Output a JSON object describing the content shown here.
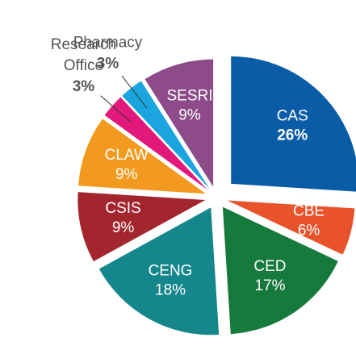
{
  "chart_data": {
    "type": "pie",
    "categories": [
      "CAS",
      "CBE",
      "CED",
      "CENG",
      "CSIS",
      "CLAW",
      "Research Office",
      "Pharmacy",
      "SESRI"
    ],
    "values": [
      26,
      6,
      17,
      18,
      9,
      9,
      3,
      3,
      9
    ],
    "value_labels": [
      "26%",
      "6%",
      "17%",
      "18%",
      "9%",
      "9%",
      "3%",
      "3%",
      "9%"
    ],
    "colors": [
      "#0b5ca6",
      "#e8532b",
      "#167a3d",
      "#15868b",
      "#a3262f",
      "#f29a1f",
      "#e3187b",
      "#1ba5df",
      "#8e4b8a"
    ]
  }
}
